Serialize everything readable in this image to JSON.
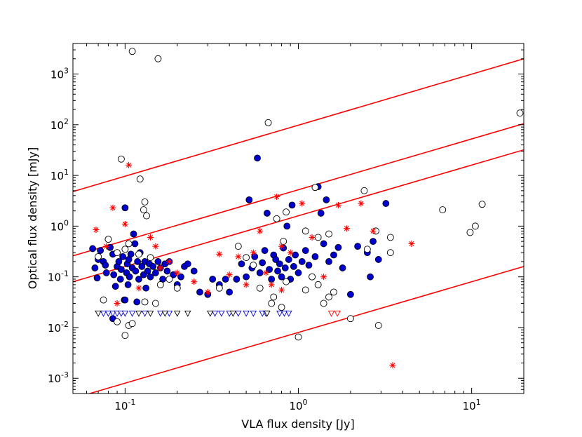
{
  "chart_data": {
    "type": "scatter",
    "title": "",
    "xlabel": "VLA flux density [Jy]",
    "ylabel": "Optical flux density [mJy]",
    "xscale": "log",
    "yscale": "log",
    "xlim": [
      0.05,
      20
    ],
    "ylim": [
      0.0005,
      4000
    ],
    "grid": false,
    "legend": "none",
    "x_ticks": [
      {
        "value": 0.1,
        "base": "10",
        "exp": "-1"
      },
      {
        "value": 1,
        "base": "10",
        "exp": "0"
      },
      {
        "value": 10,
        "base": "10",
        "exp": "1"
      }
    ],
    "y_ticks": [
      {
        "value": 0.001,
        "base": "10",
        "exp": "-3"
      },
      {
        "value": 0.01,
        "base": "10",
        "exp": "-2"
      },
      {
        "value": 0.1,
        "base": "10",
        "exp": "-1"
      },
      {
        "value": 1,
        "base": "10",
        "exp": "0"
      },
      {
        "value": 10,
        "base": "10",
        "exp": "1"
      },
      {
        "value": 100,
        "base": "10",
        "exp": "2"
      },
      {
        "value": 1000,
        "base": "10",
        "exp": "3"
      }
    ],
    "lines": [
      {
        "color": "#ff0000",
        "points": [
          [
            0.05,
            4.8
          ],
          [
            20,
            2000
          ]
        ]
      },
      {
        "color": "#ff0000",
        "points": [
          [
            0.05,
            0.26
          ],
          [
            20,
            105
          ]
        ]
      },
      {
        "color": "#ff0000",
        "points": [
          [
            0.05,
            0.08
          ],
          [
            20,
            32
          ]
        ]
      },
      {
        "color": "#ff0000",
        "points": [
          [
            0.05,
            0.0004
          ],
          [
            20,
            0.16
          ]
        ]
      }
    ],
    "series": [
      {
        "marker": "filled-circle",
        "color": "#0000cc",
        "points": [
          [
            0.065,
            0.36
          ],
          [
            0.067,
            0.15
          ],
          [
            0.07,
            0.22
          ],
          [
            0.072,
            0.33
          ],
          [
            0.075,
            0.2
          ],
          [
            0.077,
            0.17
          ],
          [
            0.078,
            0.12
          ],
          [
            0.08,
            0.55
          ],
          [
            0.082,
            0.38
          ],
          [
            0.085,
            0.28
          ],
          [
            0.086,
            0.11
          ],
          [
            0.088,
            0.065
          ],
          [
            0.09,
            0.16
          ],
          [
            0.092,
            0.2
          ],
          [
            0.094,
            0.09
          ],
          [
            0.095,
            0.14
          ],
          [
            0.097,
            0.25
          ],
          [
            0.099,
            0.035
          ],
          [
            0.1,
            2.3
          ],
          [
            0.102,
            0.12
          ],
          [
            0.103,
            0.18
          ],
          [
            0.104,
            0.07
          ],
          [
            0.105,
            0.22
          ],
          [
            0.106,
            0.1
          ],
          [
            0.108,
            0.28
          ],
          [
            0.11,
            0.15
          ],
          [
            0.112,
            0.7
          ],
          [
            0.114,
            0.45
          ],
          [
            0.115,
            0.13
          ],
          [
            0.118,
            0.2
          ],
          [
            0.12,
            0.09
          ],
          [
            0.122,
            0.3
          ],
          [
            0.125,
            0.16
          ],
          [
            0.128,
            0.11
          ],
          [
            0.13,
            0.2
          ],
          [
            0.132,
            0.06
          ],
          [
            0.135,
            0.13
          ],
          [
            0.138,
            0.18
          ],
          [
            0.14,
            0.1
          ],
          [
            0.145,
            0.16
          ],
          [
            0.15,
            0.12
          ],
          [
            0.155,
            0.2
          ],
          [
            0.16,
            0.15
          ],
          [
            0.165,
            0.09
          ],
          [
            0.17,
            0.18
          ],
          [
            0.175,
            0.13
          ],
          [
            0.18,
            0.2
          ],
          [
            0.19,
            0.11
          ],
          [
            0.2,
            0.07
          ],
          [
            0.21,
            0.1
          ],
          [
            0.22,
            0.16
          ],
          [
            0.23,
            0.18
          ],
          [
            0.25,
            0.13
          ],
          [
            0.27,
            0.05
          ],
          [
            0.3,
            0.045
          ],
          [
            0.32,
            0.09
          ],
          [
            0.35,
            0.07
          ],
          [
            0.38,
            0.09
          ],
          [
            0.4,
            0.05
          ],
          [
            0.44,
            0.09
          ],
          [
            0.47,
            0.18
          ],
          [
            0.5,
            0.1
          ],
          [
            0.52,
            3.3
          ],
          [
            0.54,
            0.15
          ],
          [
            0.56,
            0.25
          ],
          [
            0.58,
            22
          ],
          [
            0.6,
            0.12
          ],
          [
            0.62,
            0.19
          ],
          [
            0.64,
            0.33
          ],
          [
            0.66,
            1.8
          ],
          [
            0.68,
            0.14
          ],
          [
            0.7,
            0.09
          ],
          [
            0.72,
            0.27
          ],
          [
            0.74,
            0.22
          ],
          [
            0.76,
            0.13
          ],
          [
            0.78,
            0.18
          ],
          [
            0.8,
            0.1
          ],
          [
            0.82,
            0.37
          ],
          [
            0.84,
            0.15
          ],
          [
            0.86,
            1.0
          ],
          [
            0.88,
            0.22
          ],
          [
            0.9,
            0.09
          ],
          [
            0.92,
            2.6
          ],
          [
            0.94,
            0.16
          ],
          [
            0.96,
            0.27
          ],
          [
            1.0,
            0.12
          ],
          [
            1.05,
            0.2
          ],
          [
            1.1,
            0.33
          ],
          [
            1.15,
            0.17
          ],
          [
            1.2,
            0.1
          ],
          [
            1.25,
            0.25
          ],
          [
            1.3,
            6.0
          ],
          [
            1.35,
            1.8
          ],
          [
            1.4,
            0.45
          ],
          [
            1.45,
            3.3
          ],
          [
            1.5,
            0.2
          ],
          [
            1.6,
            0.27
          ],
          [
            1.7,
            0.38
          ],
          [
            1.8,
            0.15
          ],
          [
            2.0,
            0.045
          ],
          [
            2.2,
            0.4
          ],
          [
            2.5,
            0.3
          ],
          [
            2.7,
            0.5
          ],
          [
            2.9,
            0.22
          ],
          [
            3.2,
            2.8
          ],
          [
            2.6,
            0.1
          ],
          [
            0.085,
            0.015
          ],
          [
            0.069,
            0.095
          ],
          [
            0.1,
            0.035
          ],
          [
            0.117,
            0.032
          ]
        ]
      },
      {
        "marker": "open-circle",
        "color": "#000000",
        "points": [
          [
            0.11,
            2800
          ],
          [
            0.155,
            2000
          ],
          [
            0.67,
            110
          ],
          [
            19,
            170
          ],
          [
            0.095,
            21
          ],
          [
            0.122,
            8.5
          ],
          [
            0.13,
            3.0
          ],
          [
            0.128,
            2.1
          ],
          [
            0.133,
            1.6
          ],
          [
            1.25,
            5.8
          ],
          [
            2.4,
            5.0
          ],
          [
            6.8,
            2.1
          ],
          [
            11.5,
            2.7
          ],
          [
            10.5,
            1.0
          ],
          [
            9.8,
            0.75
          ],
          [
            3.4,
            0.6
          ],
          [
            2.8,
            0.8
          ],
          [
            2.5,
            0.35
          ],
          [
            3.4,
            0.3
          ],
          [
            1.5,
            0.7
          ],
          [
            1.3,
            0.6
          ],
          [
            1.1,
            0.8
          ],
          [
            0.75,
            1.4
          ],
          [
            0.85,
            1.9
          ],
          [
            0.82,
            0.5
          ],
          [
            0.07,
            0.25
          ],
          [
            0.08,
            0.55
          ],
          [
            0.09,
            0.3
          ],
          [
            0.1,
            0.35
          ],
          [
            0.105,
            0.45
          ],
          [
            0.12,
            0.28
          ],
          [
            0.14,
            0.24
          ],
          [
            0.16,
            0.07
          ],
          [
            0.18,
            0.09
          ],
          [
            0.2,
            0.06
          ],
          [
            0.075,
            0.035
          ],
          [
            0.1,
            0.007
          ],
          [
            0.105,
            0.011
          ],
          [
            0.11,
            0.012
          ],
          [
            0.09,
            0.013
          ],
          [
            0.13,
            0.032
          ],
          [
            0.15,
            0.03
          ],
          [
            0.45,
            0.4
          ],
          [
            0.5,
            0.24
          ],
          [
            0.55,
            0.17
          ],
          [
            0.6,
            0.06
          ],
          [
            0.7,
            0.03
          ],
          [
            0.8,
            0.025
          ],
          [
            0.85,
            0.08
          ],
          [
            1.0,
            0.0065
          ],
          [
            1.1,
            0.055
          ],
          [
            1.2,
            0.1
          ],
          [
            1.3,
            0.07
          ],
          [
            1.4,
            0.03
          ],
          [
            1.5,
            0.04
          ],
          [
            1.6,
            0.05
          ],
          [
            2.0,
            0.015
          ],
          [
            2.9,
            0.011
          ],
          [
            0.72,
            0.04
          ],
          [
            0.35,
            0.06
          ]
        ]
      },
      {
        "marker": "asterisk",
        "color": "#ff0000",
        "points": [
          [
            0.105,
            16
          ],
          [
            0.085,
            2.3
          ],
          [
            0.1,
            1.1
          ],
          [
            0.068,
            0.85
          ],
          [
            0.078,
            0.4
          ],
          [
            0.15,
            0.4
          ],
          [
            0.18,
            0.2
          ],
          [
            0.2,
            0.12
          ],
          [
            0.25,
            0.08
          ],
          [
            0.3,
            0.05
          ],
          [
            0.4,
            0.11
          ],
          [
            0.45,
            0.25
          ],
          [
            0.55,
            0.3
          ],
          [
            0.6,
            0.8
          ],
          [
            0.75,
            3.8
          ],
          [
            0.7,
            0.07
          ],
          [
            0.8,
            0.055
          ],
          [
            1.05,
            2.8
          ],
          [
            1.2,
            0.6
          ],
          [
            1.7,
            2.6
          ],
          [
            2.3,
            2.8
          ],
          [
            2.7,
            0.8
          ],
          [
            4.5,
            0.45
          ],
          [
            3.5,
            0.0018
          ],
          [
            0.5,
            0.07
          ],
          [
            0.65,
            0.12
          ],
          [
            0.9,
            0.3
          ],
          [
            1.4,
            0.1
          ],
          [
            0.12,
            0.06
          ],
          [
            0.09,
            0.03
          ],
          [
            0.16,
            0.15
          ],
          [
            0.14,
            0.6
          ],
          [
            0.35,
            0.28
          ],
          [
            0.8,
            0.4
          ],
          [
            1.9,
            0.9
          ]
        ]
      },
      {
        "marker": "open-triangle-down",
        "color": "#0000cc",
        "points": [
          [
            0.075,
            0.019
          ],
          [
            0.08,
            0.019
          ],
          [
            0.085,
            0.019
          ],
          [
            0.09,
            0.019
          ],
          [
            0.095,
            0.019
          ],
          [
            0.1,
            0.019
          ],
          [
            0.11,
            0.019
          ],
          [
            0.13,
            0.019
          ],
          [
            0.16,
            0.019
          ],
          [
            0.18,
            0.019
          ],
          [
            0.33,
            0.019
          ],
          [
            0.36,
            0.019
          ],
          [
            0.4,
            0.019
          ],
          [
            0.45,
            0.019
          ],
          [
            0.5,
            0.019
          ],
          [
            0.55,
            0.019
          ],
          [
            0.62,
            0.019
          ],
          [
            0.65,
            0.019
          ],
          [
            0.78,
            0.019
          ],
          [
            0.83,
            0.019
          ],
          [
            0.88,
            0.019
          ]
        ]
      },
      {
        "marker": "open-triangle-down",
        "color": "#000000",
        "points": [
          [
            0.07,
            0.019
          ],
          [
            0.12,
            0.019
          ],
          [
            0.14,
            0.019
          ],
          [
            0.17,
            0.019
          ],
          [
            0.2,
            0.019
          ],
          [
            0.23,
            0.019
          ],
          [
            0.31,
            0.019
          ],
          [
            0.42,
            0.019
          ],
          [
            0.66,
            0.019
          ]
        ]
      },
      {
        "marker": "open-triangle-down",
        "color": "#ff0000",
        "points": [
          [
            1.55,
            0.019
          ],
          [
            1.68,
            0.019
          ]
        ]
      }
    ]
  }
}
